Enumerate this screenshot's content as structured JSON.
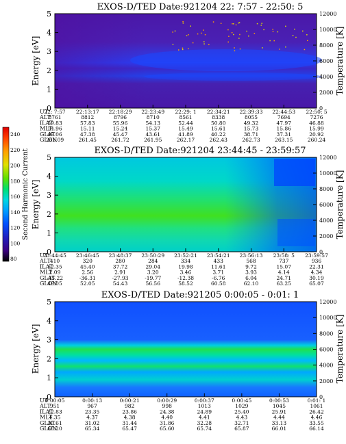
{
  "colorbar": {
    "label": "Second Harmonic Current",
    "ticks": [
      "80",
      "100",
      "120",
      "140",
      "160",
      "180",
      "200",
      "220",
      "240"
    ],
    "colors": [
      "#000000",
      "#3a0080",
      "#2020c0",
      "#0050ff",
      "#0090ff",
      "#00c8ff",
      "#00e8c8",
      "#00e060",
      "#40e000",
      "#a0e000",
      "#e0e000",
      "#ffc000",
      "#ff8000",
      "#ff3000",
      "#e00000"
    ]
  },
  "chart_data": [
    {
      "type": "heatmap",
      "title": "EXOS-D/TED   Date:921204   22: 7:57 - 22:50: 5",
      "ylabel": "Energy [eV]",
      "y2label": "Temperature [K]",
      "ylim": [
        0,
        5
      ],
      "y2lim": [
        0,
        12000
      ],
      "yticks": [
        "0",
        "1",
        "2",
        "3",
        "4",
        "5"
      ],
      "y2ticks": [
        "0",
        "2000",
        "4000",
        "6000",
        "8000",
        "10000",
        "12000"
      ],
      "ephemeris": {
        "labels": [
          "UT",
          "ALT",
          "ILAT",
          "MLT",
          "GLAT",
          "GLON"
        ],
        "columns": [
          [
            "22: 7:57",
            "8761",
            "59.83",
            "14.96",
            "49.06",
            "261.09"
          ],
          [
            "22:13:17",
            "8812",
            "57.83",
            "15.11",
            "47.38",
            "261.45"
          ],
          [
            "22:18:29",
            "8796",
            "55.96",
            "15.24",
            "45.47",
            "261.72"
          ],
          [
            "22:23:49",
            "8710",
            "54.13",
            "15.37",
            "43.61",
            "261.95"
          ],
          [
            "22:29: 1",
            "8561",
            "52.44",
            "15.49",
            "41.89",
            "262.17"
          ],
          [
            "22:34:21",
            "8338",
            "50.80",
            "15.61",
            "40.22",
            "262.43"
          ],
          [
            "22:39:33",
            "8055",
            "49.32",
            "15.73",
            "38.71",
            "262.73"
          ],
          [
            "22:44:53",
            "7694",
            "47.97",
            "15.86",
            "37.31",
            "263.15"
          ],
          [
            "22:50: 5",
            "7276",
            "46.88",
            "15.99",
            "20.92",
            "260.24"
          ]
        ]
      }
    },
    {
      "type": "heatmap",
      "title": "EXOS-D/TED   Date:921204   23:44:45 - 23:59:57",
      "ylabel": "Energy [eV]",
      "y2label": "Temperature [K]",
      "ylim": [
        0,
        5
      ],
      "y2lim": [
        0,
        12000
      ],
      "yticks": [
        "0",
        "1",
        "2",
        "3",
        "4",
        "5"
      ],
      "y2ticks": [
        "0",
        "2000",
        "4000",
        "6000",
        "8000",
        "10000",
        "12000"
      ],
      "ephemeris": {
        "labels": [
          "UT",
          "ALT",
          "ILAT",
          "MLT",
          "GLAT",
          "GLON"
        ],
        "columns": [
          [
            "23:44:45",
            "410",
            "52.35",
            "2.09",
            "-45.22",
            "49.05"
          ],
          [
            "23:46:45",
            "320",
            "45.40",
            "2.56",
            "-36.31",
            "52.05"
          ],
          [
            "23:48:37",
            "280",
            "37.72",
            "2.91",
            "-27.93",
            "54.43"
          ],
          [
            "23:50:29",
            "284",
            "29.04",
            "3.20",
            "-19.77",
            "56.56"
          ],
          [
            "23:52:21",
            "334",
            "19.98",
            "3.46",
            "-12.38",
            "58.52"
          ],
          [
            "23:54:21",
            "433",
            "11.61",
            "3.71",
            "-6.76",
            "60.58"
          ],
          [
            "23:56:13",
            "568",
            "9.72",
            "3.93",
            "6.04",
            "62.10"
          ],
          [
            "23:58: 5",
            "737",
            "15.07",
            "4.14",
            "24.71",
            "63.25"
          ],
          [
            "23:59:57",
            "936",
            "22.31",
            "4.34",
            "30.19",
            "65.07"
          ]
        ]
      }
    },
    {
      "type": "heatmap",
      "title": "EXOS-D/TED   Date:921205   0:00:05 - 0:01: 1",
      "ylabel": "Energy [eV]",
      "y2label": "Temperature [K]",
      "ylim": [
        0,
        5
      ],
      "y2lim": [
        0,
        12000
      ],
      "yticks": [
        "0",
        "1",
        "2",
        "3",
        "4",
        "5"
      ],
      "y2ticks": [
        "0",
        "2000",
        "4000",
        "6000",
        "8000",
        "10000",
        "12000"
      ],
      "ephemeris": {
        "labels": [
          "UT",
          "ALT",
          "ILAT",
          "MLT",
          "GLAT",
          "GLON"
        ],
        "columns": [
          [
            "0:00:05",
            "951",
            "22.83",
            "4.35",
            "30.61",
            "65.20"
          ],
          [
            "0:00:13",
            "967",
            "23.35",
            "4.37",
            "31.02",
            "65.34"
          ],
          [
            "0:00:21",
            "982",
            "23.86",
            "4.38",
            "31.44",
            "65.47"
          ],
          [
            "0:00:29",
            "998",
            "24.38",
            "4.40",
            "31.86",
            "65.60"
          ],
          [
            "0:00:37",
            "1013",
            "24.89",
            "4.41",
            "32.28",
            "65.74"
          ],
          [
            "0:00:45",
            "1029",
            "25.40",
            "4.43",
            "32.71",
            "65.87"
          ],
          [
            "0:00:53",
            "1045",
            "25.91",
            "4.44",
            "33.13",
            "66.01"
          ],
          [
            "0:01: 1",
            "1061",
            "26.42",
            "4.46",
            "33.55",
            "66.14"
          ]
        ]
      }
    }
  ]
}
